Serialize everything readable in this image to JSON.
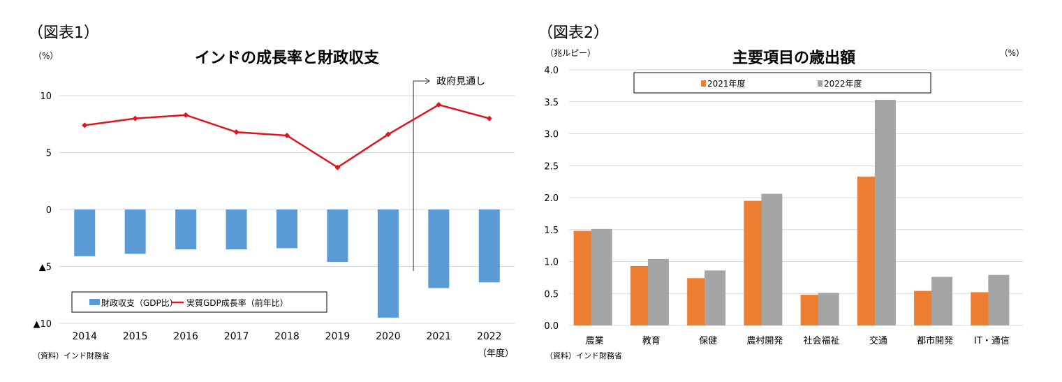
{
  "chart_data": [
    {
      "type": "bar+line",
      "figure_label": "（図表1）",
      "title": "インドの成長率と財政収支",
      "ylabel": "（%）",
      "xlabel": "（年度）",
      "source": "（資料）インド財務省",
      "annotation": "政府見通し",
      "ylim": [
        -10,
        10
      ],
      "yticks": [
        10,
        5,
        0,
        -5,
        -10
      ],
      "ytick_labels": [
        "10",
        "5",
        "0",
        "▲5",
        "▲10"
      ],
      "grid": true,
      "legend_position": "bottom-left",
      "categories": [
        "2014",
        "2015",
        "2016",
        "2017",
        "2018",
        "2019",
        "2020",
        "2021",
        "2022"
      ],
      "series": [
        {
          "name": "財政収支（GDP比）",
          "kind": "bar",
          "color": "#5b9bd5",
          "values": [
            -4.1,
            -3.9,
            -3.5,
            -3.5,
            -3.4,
            -4.6,
            -9.5,
            -6.9,
            -6.4
          ]
        },
        {
          "name": "実質GDP成長率（前年比）",
          "kind": "line",
          "color": "#e0141e",
          "values": [
            7.4,
            8.0,
            8.3,
            6.8,
            6.5,
            3.7,
            6.6,
            9.2,
            8.0
          ]
        }
      ]
    },
    {
      "type": "bar",
      "figure_label": "（図表2）",
      "title": "主要項目の歳出額",
      "ylabel": "（兆ルピー）",
      "ylabel_right": "（%）",
      "source": "（資料）インド財務省",
      "ylim": [
        0,
        4.0
      ],
      "yticks": [
        "0.0",
        "0.5",
        "1.0",
        "1.5",
        "2.0",
        "2.5",
        "3.0",
        "3.5",
        "4.0"
      ],
      "grid": true,
      "legend_position": "top",
      "categories": [
        "農業",
        "教育",
        "保健",
        "農村開発",
        "社会福祉",
        "交通",
        "都市開発",
        "IT・通信"
      ],
      "series": [
        {
          "name": "2021年度",
          "color": "#ed7d31",
          "values": [
            1.48,
            0.93,
            0.74,
            1.95,
            0.48,
            2.33,
            0.54,
            0.52
          ]
        },
        {
          "name": "2022年度",
          "color": "#a5a5a5",
          "values": [
            1.51,
            1.04,
            0.86,
            2.06,
            0.51,
            3.53,
            0.76,
            0.79
          ]
        }
      ]
    }
  ]
}
